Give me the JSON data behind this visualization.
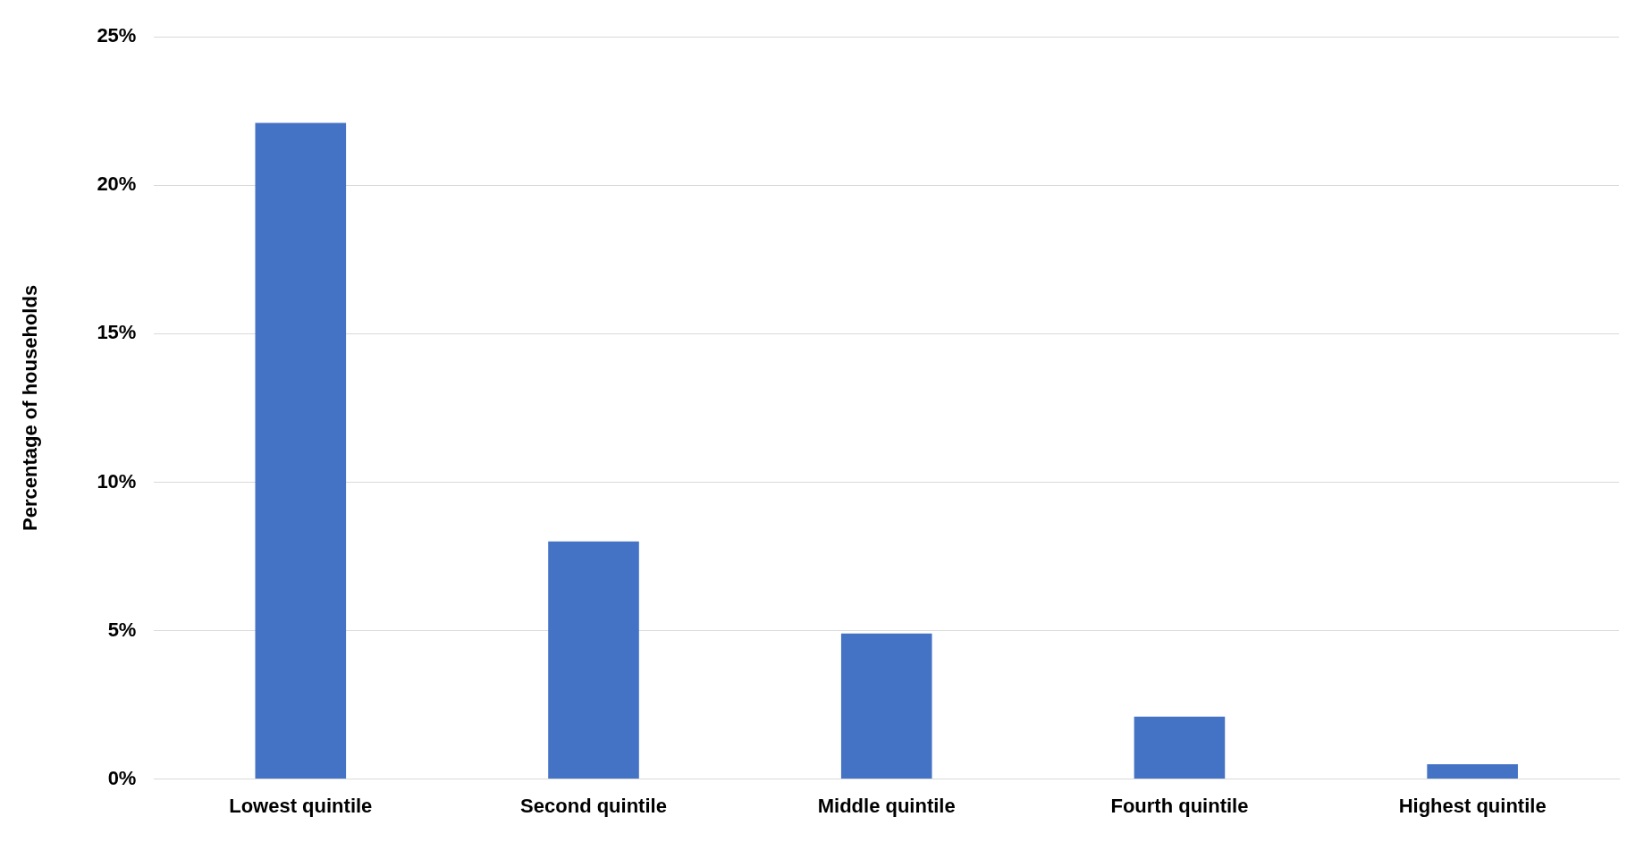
{
  "chart_data": {
    "type": "bar",
    "ylabel": "Percentage of households",
    "categories": [
      "Lowest quintile",
      "Second quintile",
      "Middle quintile",
      "Fourth quintile",
      "Highest quintile"
    ],
    "values": [
      22.1,
      8.0,
      4.9,
      2.1,
      0.5
    ],
    "color": "#4472c4",
    "ylim": [
      0,
      25
    ],
    "yticks": [
      {
        "value": 0,
        "label": "0%"
      },
      {
        "value": 5,
        "label": "5%"
      },
      {
        "value": 10,
        "label": "10%"
      },
      {
        "value": 15,
        "label": "15%"
      },
      {
        "value": 20,
        "label": "20%"
      },
      {
        "value": 25,
        "label": "25%"
      }
    ],
    "grid": "y",
    "legend": false
  }
}
